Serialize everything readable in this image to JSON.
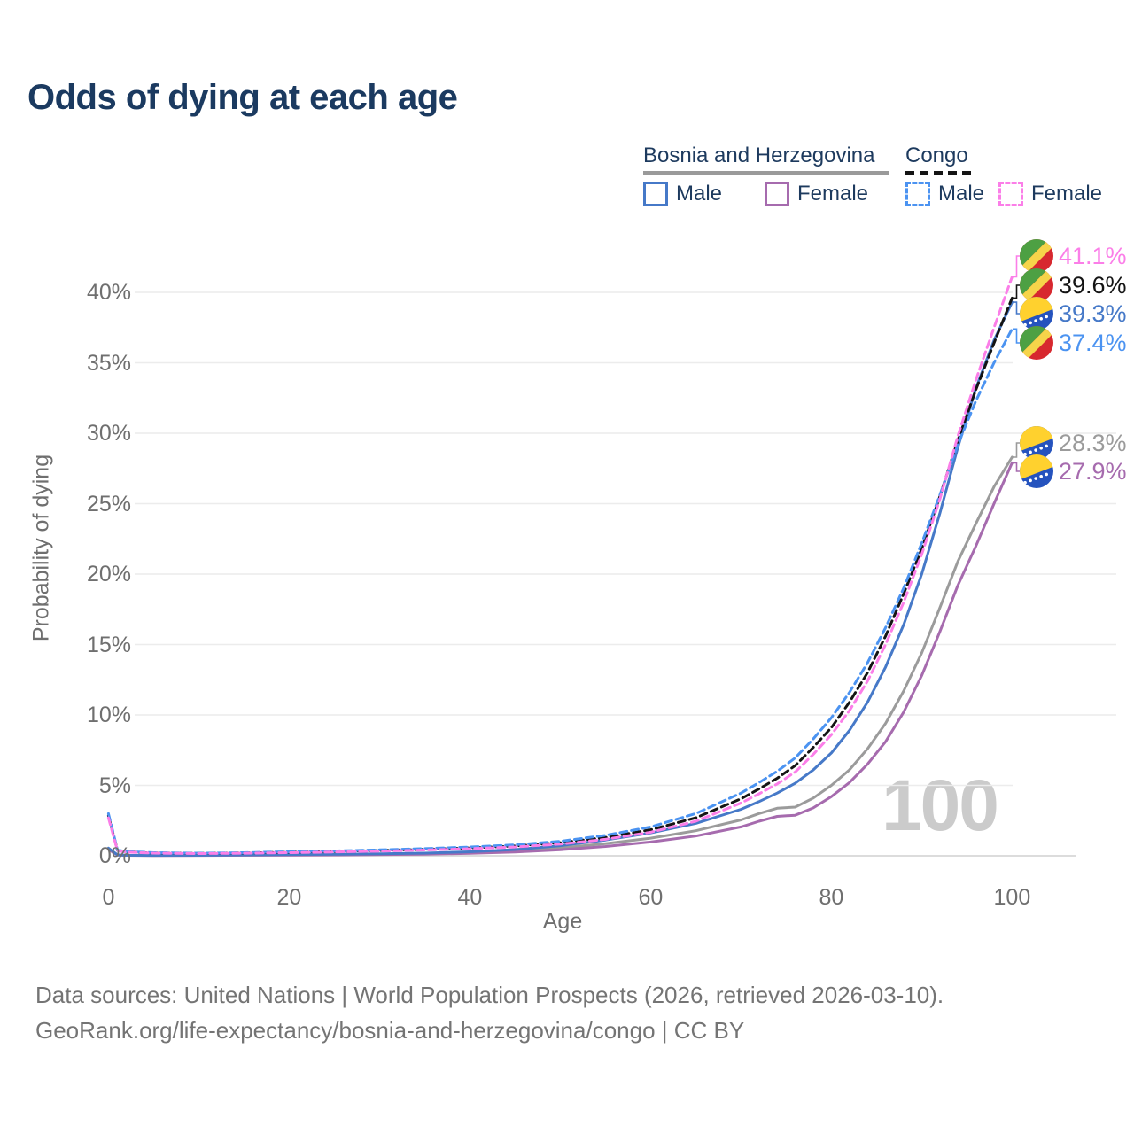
{
  "title": "Odds of dying at each age",
  "watermark": "100",
  "legend": {
    "groups": [
      {
        "name": "Bosnia and Herzegovina",
        "line_style": "solid",
        "line_color": "#9a9a9a",
        "items": [
          {
            "label": "Male",
            "color": "#4679c8",
            "dashed": false
          },
          {
            "label": "Female",
            "color": "#a66bae",
            "dashed": false
          }
        ]
      },
      {
        "name": "Congo",
        "line_style": "dashed",
        "line_color": "#141414",
        "items": [
          {
            "label": "Male",
            "color": "#4b93f1",
            "dashed": true
          },
          {
            "label": "Female",
            "color": "#fb7ee8",
            "dashed": true
          }
        ]
      }
    ]
  },
  "axes": {
    "y_title": "Probability of dying",
    "x_title": "Age",
    "y_ticks": [
      {
        "label": "0%",
        "value": 0
      },
      {
        "label": "5%",
        "value": 5
      },
      {
        "label": "10%",
        "value": 10
      },
      {
        "label": "15%",
        "value": 15
      },
      {
        "label": "20%",
        "value": 20
      },
      {
        "label": "25%",
        "value": 25
      },
      {
        "label": "30%",
        "value": 30
      },
      {
        "label": "35%",
        "value": 35
      },
      {
        "label": "40%",
        "value": 40
      }
    ],
    "x_ticks": [
      {
        "label": "0",
        "value": 0
      },
      {
        "label": "20",
        "value": 20
      },
      {
        "label": "40",
        "value": 40
      },
      {
        "label": "60",
        "value": 60
      },
      {
        "label": "80",
        "value": 80
      },
      {
        "label": "100",
        "value": 100
      }
    ]
  },
  "end_labels": [
    {
      "value": "41.1%",
      "pct": 41.1,
      "flag": "congo",
      "color": "#fb7ee8"
    },
    {
      "value": "39.6%",
      "pct": 39.6,
      "flag": "congo",
      "color": "#141414"
    },
    {
      "value": "39.3%",
      "pct": 39.3,
      "flag": "bosnia",
      "color": "#4679c8"
    },
    {
      "value": "37.4%",
      "pct": 37.4,
      "flag": "congo",
      "color": "#4b93f1"
    },
    {
      "value": "28.3%",
      "pct": 28.3,
      "flag": "bosnia",
      "color": "#9b9b9b"
    },
    {
      "value": "27.9%",
      "pct": 27.9,
      "flag": "bosnia",
      "color": "#a66bae"
    }
  ],
  "footer": {
    "line1": "Data sources: United Nations | World Population Prospects (2026, retrieved 2026-03-10).",
    "line2": "GeoRank.org/life-expectancy/bosnia-and-herzegovina/congo | CC BY"
  },
  "flag_colors": {
    "bosnia": {
      "blue": "#2553be",
      "yellow": "#ffd12e",
      "star": "#ffffff"
    },
    "congo": {
      "green": "#4da043",
      "yellow": "#f6d44a",
      "red": "#d7282f"
    }
  },
  "chart_data": {
    "type": "line",
    "title": "Odds of dying at each age",
    "xlabel": "Age",
    "ylabel": "Probability of dying",
    "xlim": [
      0,
      100
    ],
    "ylim": [
      0,
      43
    ],
    "grid": true,
    "legend_position": "top-right",
    "x": [
      0,
      1,
      2,
      5,
      10,
      15,
      20,
      25,
      30,
      35,
      40,
      45,
      50,
      55,
      60,
      65,
      70,
      72,
      74,
      76,
      78,
      80,
      82,
      84,
      86,
      88,
      90,
      92,
      94,
      96,
      98,
      100
    ],
    "series": [
      {
        "name": "Bosnia and Herzegovina — Both sexes",
        "key": "bosnia-both",
        "color": "#9b9b9b",
        "dashed": false,
        "end_value_pct": 28.3,
        "values": [
          0.5,
          0.055,
          0.035,
          0.025,
          0.03,
          0.05,
          0.07,
          0.09,
          0.11,
          0.15,
          0.22,
          0.35,
          0.56,
          0.86,
          1.25,
          1.78,
          2.55,
          3.0,
          3.38,
          3.46,
          4.1,
          5.0,
          6.1,
          7.6,
          9.4,
          11.7,
          14.4,
          17.6,
          20.9,
          23.6,
          26.2,
          28.3
        ]
      },
      {
        "name": "Bosnia and Herzegovina — Female",
        "key": "bosnia-female",
        "color": "#a66bae",
        "dashed": false,
        "end_value_pct": 27.9,
        "values": [
          0.45,
          0.05,
          0.03,
          0.02,
          0.025,
          0.04,
          0.05,
          0.065,
          0.085,
          0.115,
          0.17,
          0.27,
          0.43,
          0.66,
          0.98,
          1.4,
          2.05,
          2.45,
          2.8,
          2.88,
          3.4,
          4.2,
          5.2,
          6.5,
          8.1,
          10.2,
          12.8,
          15.9,
          19.2,
          22.0,
          25.0,
          27.9
        ]
      },
      {
        "name": "Bosnia and Herzegovina — Male",
        "key": "bosnia-male",
        "color": "#4679c8",
        "dashed": false,
        "end_value_pct": 39.3,
        "values": [
          0.55,
          0.06,
          0.04,
          0.03,
          0.035,
          0.06,
          0.09,
          0.11,
          0.14,
          0.19,
          0.28,
          0.44,
          0.72,
          1.12,
          1.62,
          2.3,
          3.3,
          3.85,
          4.45,
          5.15,
          6.1,
          7.3,
          8.9,
          10.9,
          13.4,
          16.4,
          20.0,
          24.3,
          29.0,
          33.2,
          36.6,
          39.3
        ]
      },
      {
        "name": "Congo — Both sexes",
        "key": "congo-both",
        "color": "#141414",
        "dashed": true,
        "end_value_pct": 39.6,
        "values": [
          2.85,
          0.38,
          0.28,
          0.2,
          0.17,
          0.2,
          0.25,
          0.31,
          0.38,
          0.46,
          0.56,
          0.7,
          0.93,
          1.3,
          1.85,
          2.7,
          4.05,
          4.75,
          5.5,
          6.4,
          7.7,
          9.1,
          10.9,
          13.0,
          15.6,
          18.6,
          21.8,
          25.5,
          29.5,
          33.1,
          36.4,
          39.6
        ]
      },
      {
        "name": "Congo — Male",
        "key": "congo-male",
        "color": "#4b93f1",
        "dashed": true,
        "end_value_pct": 37.4,
        "values": [
          3.0,
          0.4,
          0.3,
          0.22,
          0.18,
          0.22,
          0.28,
          0.34,
          0.42,
          0.51,
          0.62,
          0.78,
          1.03,
          1.45,
          2.05,
          3.0,
          4.45,
          5.2,
          6.0,
          6.95,
          8.3,
          9.8,
          11.6,
          13.7,
          16.2,
          19.0,
          22.2,
          25.6,
          29.2,
          32.3,
          35.0,
          37.4
        ]
      },
      {
        "name": "Congo — Female",
        "key": "congo-female",
        "color": "#fb7ee8",
        "dashed": true,
        "end_value_pct": 41.1,
        "values": [
          2.7,
          0.36,
          0.26,
          0.19,
          0.16,
          0.18,
          0.22,
          0.27,
          0.33,
          0.41,
          0.5,
          0.63,
          0.83,
          1.17,
          1.67,
          2.45,
          3.75,
          4.4,
          5.1,
          5.95,
          7.2,
          8.6,
          10.3,
          12.4,
          15.0,
          18.0,
          21.4,
          25.3,
          29.8,
          33.8,
          37.5,
          41.1
        ]
      }
    ]
  }
}
